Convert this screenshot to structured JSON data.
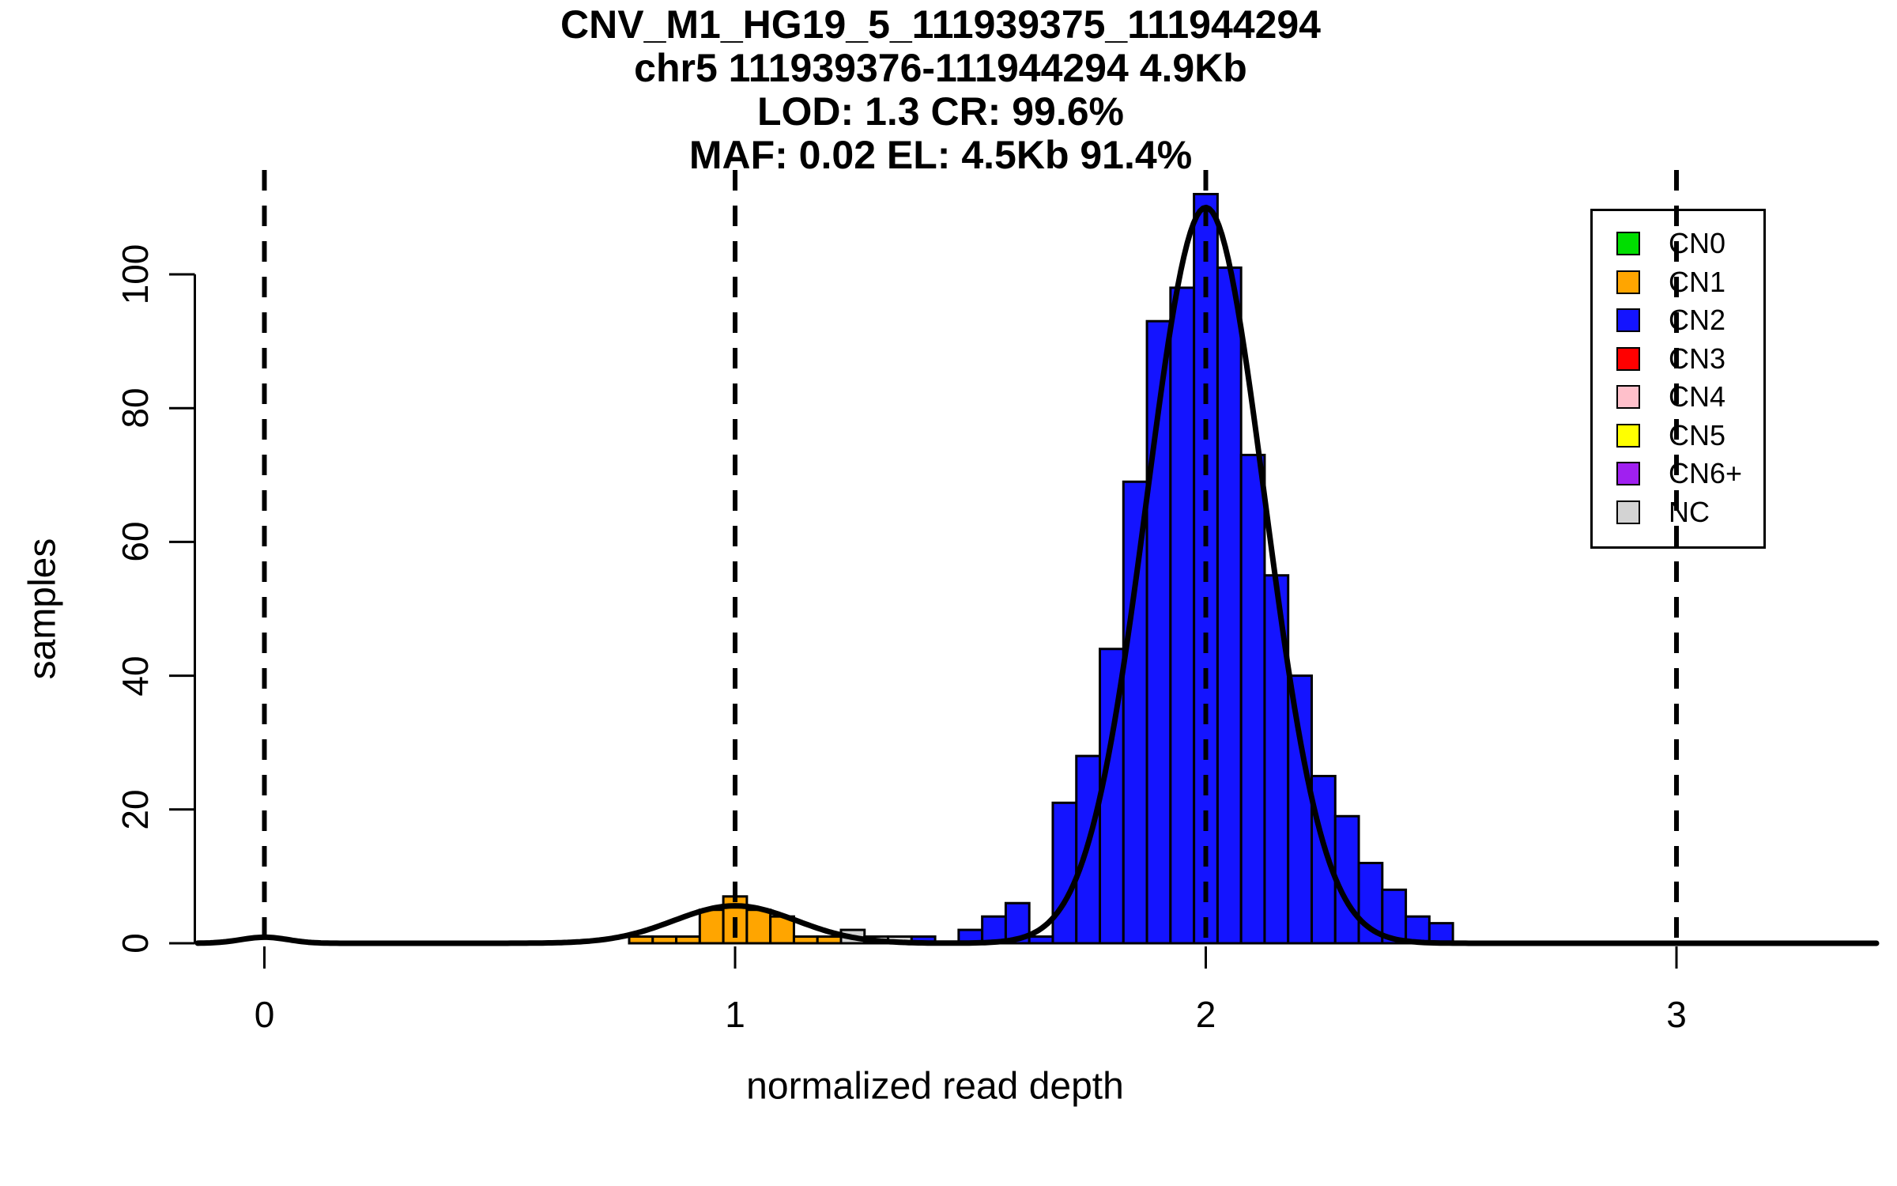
{
  "title": {
    "line1": "CNV_M1_HG19_5_111939375_111944294",
    "line2": "chr5 111939376-111944294 4.9Kb",
    "line3": "LOD: 1.3 CR: 99.6%",
    "line4": "MAF: 0.02 EL: 4.5Kb 91.4%"
  },
  "chart_data": {
    "type": "bar",
    "subtype": "histogram-with-density-curve",
    "xlabel": "normalized read depth",
    "ylabel": "samples",
    "xticks": [
      0,
      1,
      2,
      3
    ],
    "yticks": [
      0,
      20,
      40,
      60,
      80,
      100
    ],
    "xlim": [
      -0.15,
      3.43
    ],
    "ylim": [
      0,
      115
    ],
    "bin_width": 0.05,
    "bins": [
      {
        "x": 0.775,
        "count": 1,
        "cn": "CN1"
      },
      {
        "x": 0.825,
        "count": 1,
        "cn": "CN1"
      },
      {
        "x": 0.875,
        "count": 1,
        "cn": "CN1"
      },
      {
        "x": 0.925,
        "count": 5,
        "cn": "CN1"
      },
      {
        "x": 0.975,
        "count": 7,
        "cn": "CN1"
      },
      {
        "x": 1.025,
        "count": 5,
        "cn": "CN1"
      },
      {
        "x": 1.075,
        "count": 4,
        "cn": "CN1"
      },
      {
        "x": 1.125,
        "count": 1,
        "cn": "CN1"
      },
      {
        "x": 1.175,
        "count": 1,
        "cn": "CN1"
      },
      {
        "x": 1.225,
        "count": 2,
        "cn": "NC"
      },
      {
        "x": 1.275,
        "count": 1,
        "cn": "NC"
      },
      {
        "x": 1.325,
        "count": 1,
        "cn": "NC"
      },
      {
        "x": 1.375,
        "count": 1,
        "cn": "CN2"
      },
      {
        "x": 1.475,
        "count": 2,
        "cn": "CN2"
      },
      {
        "x": 1.525,
        "count": 4,
        "cn": "CN2"
      },
      {
        "x": 1.575,
        "count": 6,
        "cn": "CN2"
      },
      {
        "x": 1.625,
        "count": 1,
        "cn": "CN2"
      },
      {
        "x": 1.675,
        "count": 21,
        "cn": "CN2"
      },
      {
        "x": 1.725,
        "count": 28,
        "cn": "CN2"
      },
      {
        "x": 1.775,
        "count": 44,
        "cn": "CN2"
      },
      {
        "x": 1.825,
        "count": 69,
        "cn": "CN2"
      },
      {
        "x": 1.875,
        "count": 93,
        "cn": "CN2"
      },
      {
        "x": 1.925,
        "count": 98,
        "cn": "CN2"
      },
      {
        "x": 1.975,
        "count": 112,
        "cn": "CN2"
      },
      {
        "x": 2.025,
        "count": 101,
        "cn": "CN2"
      },
      {
        "x": 2.075,
        "count": 73,
        "cn": "CN2"
      },
      {
        "x": 2.125,
        "count": 55,
        "cn": "CN2"
      },
      {
        "x": 2.175,
        "count": 40,
        "cn": "CN2"
      },
      {
        "x": 2.225,
        "count": 25,
        "cn": "CN2"
      },
      {
        "x": 2.275,
        "count": 19,
        "cn": "CN2"
      },
      {
        "x": 2.325,
        "count": 12,
        "cn": "CN2"
      },
      {
        "x": 2.375,
        "count": 8,
        "cn": "CN2"
      },
      {
        "x": 2.425,
        "count": 4,
        "cn": "CN2"
      },
      {
        "x": 2.475,
        "count": 3,
        "cn": "CN2"
      }
    ],
    "curve_components": [
      {
        "cn": "CN0",
        "mean": 0,
        "sd": 0.05,
        "peak": 0.9
      },
      {
        "cn": "CN1",
        "mean": 1,
        "sd": 0.13,
        "peak": 5.6
      },
      {
        "cn": "CN2",
        "mean": 2,
        "sd": 0.125,
        "peak": 110
      }
    ],
    "vlines_x": [
      0,
      1,
      2,
      3
    ],
    "legend": [
      {
        "label": "CN0",
        "color": "#00DE00"
      },
      {
        "label": "CN1",
        "color": "#FFA500"
      },
      {
        "label": "CN2",
        "color": "#1414FF"
      },
      {
        "label": "CN3",
        "color": "#FF0000"
      },
      {
        "label": "CN4",
        "color": "#FFC0CB"
      },
      {
        "label": "CN5",
        "color": "#FFFF00"
      },
      {
        "label": "CN6+",
        "color": "#A020F0"
      },
      {
        "label": "NC",
        "color": "#D3D3D3"
      }
    ]
  }
}
